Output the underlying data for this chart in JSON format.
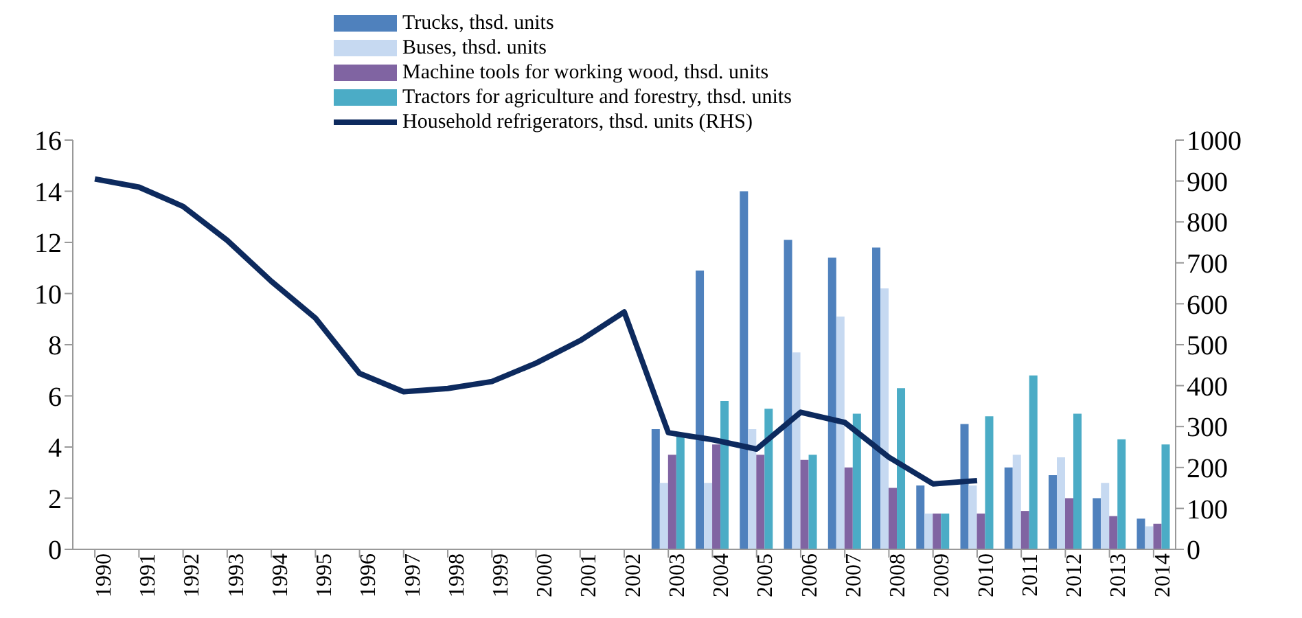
{
  "chart_data": {
    "type": "bar",
    "categories": [
      "1990",
      "1991",
      "1992",
      "1993",
      "1994",
      "1995",
      "1996",
      "1997",
      "1998",
      "1999",
      "2000",
      "2001",
      "2002",
      "2003",
      "2004",
      "2005",
      "2006",
      "2007",
      "2008",
      "2009",
      "2010",
      "2011",
      "2012",
      "2013",
      "2014"
    ],
    "series": [
      {
        "name": "Trucks,  thsd. units",
        "color": "#4f81bd",
        "values": [
          null,
          null,
          null,
          null,
          null,
          null,
          null,
          null,
          null,
          null,
          null,
          null,
          null,
          4.7,
          10.9,
          14.0,
          12.1,
          11.4,
          11.8,
          2.5,
          4.9,
          3.2,
          2.9,
          2.0,
          1.2
        ]
      },
      {
        "name": "Buses, thsd. units",
        "color": "#c6d9f1",
        "values": [
          null,
          null,
          null,
          null,
          null,
          null,
          null,
          null,
          null,
          null,
          null,
          null,
          null,
          2.6,
          2.6,
          4.7,
          7.7,
          9.1,
          10.2,
          1.4,
          2.5,
          3.7,
          3.6,
          2.6,
          0.9
        ]
      },
      {
        "name": "Machine tools for working wood, thsd. units",
        "color": "#8064a2",
        "values": [
          null,
          null,
          null,
          null,
          null,
          null,
          null,
          null,
          null,
          null,
          null,
          null,
          null,
          3.7,
          4.1,
          3.7,
          3.5,
          3.2,
          2.4,
          1.4,
          1.4,
          1.5,
          2.0,
          1.3,
          1.0
        ]
      },
      {
        "name": "Tractors for agriculture and forestry, thsd. units",
        "color": "#4bacc6",
        "values": [
          null,
          null,
          null,
          null,
          null,
          null,
          null,
          null,
          null,
          null,
          null,
          null,
          null,
          4.5,
          5.8,
          5.5,
          3.7,
          5.3,
          6.3,
          1.4,
          5.2,
          6.8,
          5.3,
          4.3,
          4.1
        ]
      },
      {
        "name": "Household refrigerators, thsd. units (RHS)",
        "type": "line",
        "axis": "y2",
        "color": "#0d2a5e",
        "values": [
          905,
          885,
          838,
          755,
          655,
          565,
          430,
          385,
          393,
          410,
          455,
          510,
          580,
          285,
          268,
          245,
          335,
          310,
          225,
          160,
          168,
          null,
          null,
          null,
          null
        ]
      }
    ],
    "ylim": [
      0,
      16
    ],
    "yticks": [
      0,
      2,
      4,
      6,
      8,
      10,
      12,
      14,
      16
    ],
    "y2lim": [
      0,
      1000
    ],
    "y2ticks": [
      0,
      100,
      200,
      300,
      400,
      500,
      600,
      700,
      800,
      900,
      1000
    ],
    "grid": false,
    "legend": "top",
    "marker": "none",
    "line_style": "solid"
  }
}
